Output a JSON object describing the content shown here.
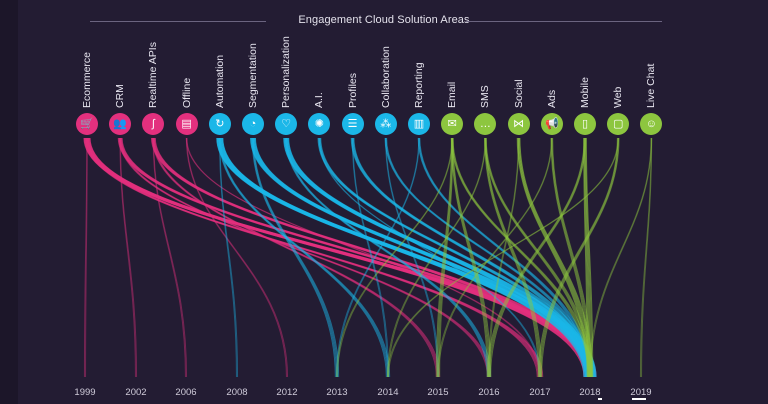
{
  "chart_data": {
    "type": "parallel-sets",
    "title": "Engagement Cloud Solution Areas",
    "categories": [
      {
        "name": "Ecommerce",
        "group": "commerce",
        "icon": "cart-icon",
        "glyph": "🛒"
      },
      {
        "name": "CRM",
        "group": "commerce",
        "icon": "people-icon",
        "glyph": "👥"
      },
      {
        "name": "Realtime APIs",
        "group": "commerce",
        "icon": "link-icon",
        "glyph": "∫"
      },
      {
        "name": "Offline",
        "group": "commerce",
        "icon": "receipt-icon",
        "glyph": "▤"
      },
      {
        "name": "Automation",
        "group": "data",
        "icon": "cycle-icon",
        "glyph": "↻"
      },
      {
        "name": "Segmentation",
        "group": "data",
        "icon": "pie-icon",
        "glyph": "◔"
      },
      {
        "name": "Personalization",
        "group": "data",
        "icon": "heart-icon",
        "glyph": "♡"
      },
      {
        "name": "A.I.",
        "group": "data",
        "icon": "brain-icon",
        "glyph": "✺"
      },
      {
        "name": "Profiles",
        "group": "data",
        "icon": "sliders-icon",
        "glyph": "☰"
      },
      {
        "name": "Collaboration",
        "group": "data",
        "icon": "network-icon",
        "glyph": "⁂"
      },
      {
        "name": "Reporting",
        "group": "data",
        "icon": "bars-icon",
        "glyph": "▥"
      },
      {
        "name": "Email",
        "group": "channel",
        "icon": "envelope-icon",
        "glyph": "✉"
      },
      {
        "name": "SMS",
        "group": "channel",
        "icon": "message-icon",
        "glyph": "…"
      },
      {
        "name": "Social",
        "group": "channel",
        "icon": "share-icon",
        "glyph": "⋈"
      },
      {
        "name": "Ads",
        "group": "channel",
        "icon": "megaphone-icon",
        "glyph": "📢"
      },
      {
        "name": "Mobile",
        "group": "channel",
        "icon": "phone-icon",
        "glyph": "▯"
      },
      {
        "name": "Web",
        "group": "channel",
        "icon": "browser-icon",
        "glyph": "▢"
      },
      {
        "name": "Live Chat",
        "group": "channel",
        "icon": "chat-icon",
        "glyph": "☺"
      }
    ],
    "years": [
      "1999",
      "2002",
      "2006",
      "2008",
      "2012",
      "2013",
      "2014",
      "2015",
      "2016",
      "2017",
      "2018",
      "2019"
    ],
    "links": [
      {
        "from": "Ecommerce",
        "to": "2018",
        "weight": 6
      },
      {
        "from": "Ecommerce",
        "to": "2017",
        "weight": 3
      },
      {
        "from": "Ecommerce",
        "to": "1999",
        "weight": 1
      },
      {
        "from": "CRM",
        "to": "2018",
        "weight": 4
      },
      {
        "from": "CRM",
        "to": "2016",
        "weight": 2
      },
      {
        "from": "CRM",
        "to": "2002",
        "weight": 1
      },
      {
        "from": "Realtime APIs",
        "to": "2018",
        "weight": 4
      },
      {
        "from": "Realtime APIs",
        "to": "2015",
        "weight": 2
      },
      {
        "from": "Realtime APIs",
        "to": "2006",
        "weight": 1
      },
      {
        "from": "Offline",
        "to": "2017",
        "weight": 1
      },
      {
        "from": "Offline",
        "to": "2012",
        "weight": 1
      },
      {
        "from": "Automation",
        "to": "2018",
        "weight": 6
      },
      {
        "from": "Automation",
        "to": "2014",
        "weight": 2
      },
      {
        "from": "Automation",
        "to": "2008",
        "weight": 1
      },
      {
        "from": "Segmentation",
        "to": "2018",
        "weight": 5
      },
      {
        "from": "Segmentation",
        "to": "2013",
        "weight": 2
      },
      {
        "from": "Personalization",
        "to": "2018",
        "weight": 5
      },
      {
        "from": "Personalization",
        "to": "2016",
        "weight": 2
      },
      {
        "from": "A.I.",
        "to": "2018",
        "weight": 3
      },
      {
        "from": "A.I.",
        "to": "2017",
        "weight": 1
      },
      {
        "from": "Profiles",
        "to": "2018",
        "weight": 3
      },
      {
        "from": "Profiles",
        "to": "2014",
        "weight": 1
      },
      {
        "from": "Collaboration",
        "to": "2018",
        "weight": 2
      },
      {
        "from": "Collaboration",
        "to": "2015",
        "weight": 1
      },
      {
        "from": "Reporting",
        "to": "2018",
        "weight": 2
      },
      {
        "from": "Reporting",
        "to": "2013",
        "weight": 1
      },
      {
        "from": "Email",
        "to": "2018",
        "weight": 2
      },
      {
        "from": "Email",
        "to": "2016",
        "weight": 2
      },
      {
        "from": "Email",
        "to": "2015",
        "weight": 2
      },
      {
        "from": "Email",
        "to": "2013",
        "weight": 1
      },
      {
        "from": "SMS",
        "to": "2018",
        "weight": 2
      },
      {
        "from": "SMS",
        "to": "2017",
        "weight": 2
      },
      {
        "from": "SMS",
        "to": "2014",
        "weight": 1
      },
      {
        "from": "Social",
        "to": "2018",
        "weight": 3
      },
      {
        "from": "Social",
        "to": "2016",
        "weight": 1
      },
      {
        "from": "Ads",
        "to": "2018",
        "weight": 2
      },
      {
        "from": "Ads",
        "to": "2015",
        "weight": 1
      },
      {
        "from": "Mobile",
        "to": "2018",
        "weight": 3
      },
      {
        "from": "Mobile",
        "to": "2016",
        "weight": 2
      },
      {
        "from": "Web",
        "to": "2017",
        "weight": 2
      },
      {
        "from": "Web",
        "to": "2014",
        "weight": 1
      },
      {
        "from": "Live Chat",
        "to": "2019",
        "weight": 1
      },
      {
        "from": "Live Chat",
        "to": "2018",
        "weight": 1
      }
    ]
  },
  "colors": {
    "background": "#231c33",
    "commerce": "#e3307e",
    "data": "#1bb7e8",
    "channel": "#8dc63f",
    "text": "#e8e6f0",
    "rule": "#6b6480"
  }
}
